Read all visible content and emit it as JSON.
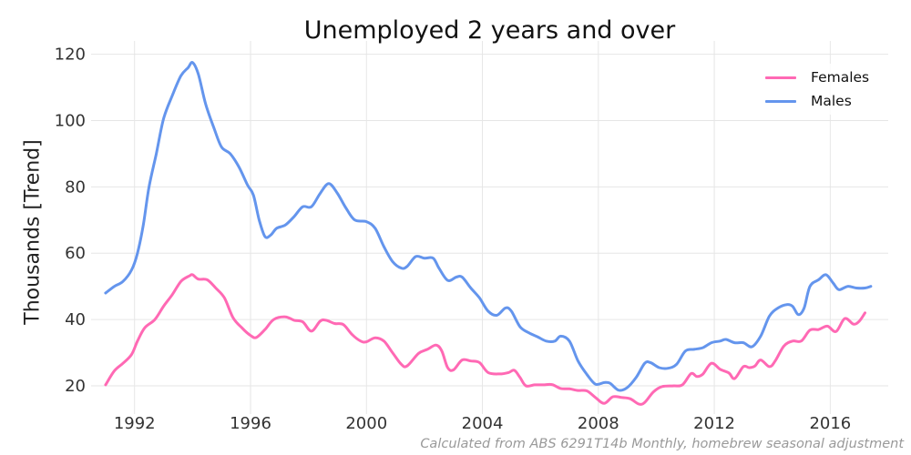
{
  "chart_data": {
    "type": "line",
    "title": "Unemployed 2 years and over",
    "xlabel": "",
    "ylabel": "Thousands [Trend]",
    "footnote": "Calculated from ABS 6291T14b Monthly, homebrew seasonal adjustment",
    "xlim": [
      1990.5,
      2018.0
    ],
    "ylim": [
      11.5,
      124
    ],
    "x_ticks": [
      1992,
      1996,
      2000,
      2004,
      2008,
      2012,
      2016
    ],
    "y_ticks": [
      20,
      40,
      60,
      80,
      100,
      120
    ],
    "grid": true,
    "legend_position": "upper right",
    "series": [
      {
        "name": "Females",
        "color": "#ff69b4",
        "points": [
          [
            1991.0,
            20.3
          ],
          [
            1991.3,
            24.5
          ],
          [
            1991.6,
            26.8
          ],
          [
            1991.9,
            29.5
          ],
          [
            1992.1,
            33.5
          ],
          [
            1992.35,
            37.5
          ],
          [
            1992.7,
            40.0
          ],
          [
            1993.0,
            44.0
          ],
          [
            1993.3,
            47.5
          ],
          [
            1993.6,
            51.5
          ],
          [
            1993.9,
            53.2
          ],
          [
            1994.0,
            53.5
          ],
          [
            1994.2,
            52.2
          ],
          [
            1994.5,
            52.0
          ],
          [
            1994.8,
            49.5
          ],
          [
            1995.1,
            46.5
          ],
          [
            1995.4,
            40.5
          ],
          [
            1995.7,
            37.5
          ],
          [
            1996.0,
            35.2
          ],
          [
            1996.2,
            34.6
          ],
          [
            1996.5,
            37.0
          ],
          [
            1996.8,
            40.0
          ],
          [
            1997.2,
            40.8
          ],
          [
            1997.5,
            39.8
          ],
          [
            1997.8,
            39.3
          ],
          [
            1998.1,
            36.5
          ],
          [
            1998.4,
            39.5
          ],
          [
            1998.6,
            39.8
          ],
          [
            1998.9,
            38.8
          ],
          [
            1999.2,
            38.5
          ],
          [
            1999.5,
            35.5
          ],
          [
            1999.8,
            33.5
          ],
          [
            2000.0,
            33.3
          ],
          [
            2000.3,
            34.5
          ],
          [
            2000.6,
            33.5
          ],
          [
            2000.9,
            30.0
          ],
          [
            2001.2,
            26.5
          ],
          [
            2001.4,
            26.0
          ],
          [
            2001.8,
            29.8
          ],
          [
            2002.1,
            31.0
          ],
          [
            2002.4,
            32.3
          ],
          [
            2002.6,
            30.5
          ],
          [
            2002.8,
            25.5
          ],
          [
            2003.0,
            24.8
          ],
          [
            2003.3,
            27.8
          ],
          [
            2003.6,
            27.5
          ],
          [
            2003.9,
            27.0
          ],
          [
            2004.2,
            24.0
          ],
          [
            2004.6,
            23.6
          ],
          [
            2004.9,
            24.0
          ],
          [
            2005.1,
            24.7
          ],
          [
            2005.3,
            22.5
          ],
          [
            2005.5,
            20.0
          ],
          [
            2005.8,
            20.3
          ],
          [
            2006.1,
            20.3
          ],
          [
            2006.4,
            20.4
          ],
          [
            2006.7,
            19.2
          ],
          [
            2007.0,
            19.1
          ],
          [
            2007.3,
            18.6
          ],
          [
            2007.6,
            18.5
          ],
          [
            2007.9,
            16.5
          ],
          [
            2008.2,
            14.7
          ],
          [
            2008.5,
            16.7
          ],
          [
            2008.8,
            16.5
          ],
          [
            2009.1,
            16.1
          ],
          [
            2009.4,
            14.5
          ],
          [
            2009.6,
            15.0
          ],
          [
            2009.9,
            18.2
          ],
          [
            2010.2,
            19.8
          ],
          [
            2010.6,
            20.0
          ],
          [
            2010.9,
            20.3
          ],
          [
            2011.2,
            23.7
          ],
          [
            2011.4,
            22.8
          ],
          [
            2011.6,
            23.5
          ],
          [
            2011.9,
            26.8
          ],
          [
            2012.2,
            25.0
          ],
          [
            2012.5,
            23.9
          ],
          [
            2012.7,
            22.2
          ],
          [
            2013.0,
            25.8
          ],
          [
            2013.2,
            25.5
          ],
          [
            2013.4,
            26.0
          ],
          [
            2013.6,
            27.8
          ],
          [
            2013.9,
            25.8
          ],
          [
            2014.1,
            27.5
          ],
          [
            2014.4,
            32.0
          ],
          [
            2014.7,
            33.5
          ],
          [
            2015.0,
            33.5
          ],
          [
            2015.3,
            36.8
          ],
          [
            2015.6,
            37.0
          ],
          [
            2015.9,
            38.0
          ],
          [
            2016.2,
            36.4
          ],
          [
            2016.5,
            40.3
          ],
          [
            2016.8,
            38.6
          ],
          [
            2017.0,
            39.5
          ],
          [
            2017.2,
            42.0
          ]
        ]
      },
      {
        "name": "Males",
        "color": "#6495ed",
        "points": [
          [
            1991.0,
            48.0
          ],
          [
            1991.3,
            50.0
          ],
          [
            1991.6,
            51.5
          ],
          [
            1991.9,
            55.0
          ],
          [
            1992.1,
            60.0
          ],
          [
            1992.3,
            68.5
          ],
          [
            1992.5,
            80.0
          ],
          [
            1992.75,
            90.0
          ],
          [
            1993.0,
            100.5
          ],
          [
            1993.3,
            107.5
          ],
          [
            1993.6,
            113.5
          ],
          [
            1993.85,
            116.0
          ],
          [
            1994.0,
            117.5
          ],
          [
            1994.2,
            114.0
          ],
          [
            1994.45,
            105.0
          ],
          [
            1994.75,
            97.5
          ],
          [
            1995.0,
            92.0
          ],
          [
            1995.3,
            90.0
          ],
          [
            1995.6,
            86.0
          ],
          [
            1995.9,
            80.5
          ],
          [
            1996.1,
            77.5
          ],
          [
            1996.3,
            70.0
          ],
          [
            1996.5,
            65.0
          ],
          [
            1996.7,
            65.5
          ],
          [
            1996.9,
            67.5
          ],
          [
            1997.2,
            68.5
          ],
          [
            1997.5,
            71.0
          ],
          [
            1997.8,
            74.0
          ],
          [
            1998.1,
            74.0
          ],
          [
            1998.4,
            78.0
          ],
          [
            1998.7,
            81.0
          ],
          [
            1999.0,
            78.0
          ],
          [
            1999.3,
            73.5
          ],
          [
            1999.6,
            70.0
          ],
          [
            2000.0,
            69.5
          ],
          [
            2000.3,
            67.5
          ],
          [
            2000.6,
            62.0
          ],
          [
            2000.9,
            57.5
          ],
          [
            2001.2,
            55.5
          ],
          [
            2001.4,
            56.0
          ],
          [
            2001.7,
            59.0
          ],
          [
            2002.0,
            58.5
          ],
          [
            2002.3,
            58.5
          ],
          [
            2002.5,
            55.5
          ],
          [
            2002.8,
            51.8
          ],
          [
            2003.1,
            52.8
          ],
          [
            2003.3,
            52.8
          ],
          [
            2003.6,
            49.5
          ],
          [
            2003.9,
            46.5
          ],
          [
            2004.2,
            42.5
          ],
          [
            2004.5,
            41.3
          ],
          [
            2004.8,
            43.5
          ],
          [
            2005.0,
            42.5
          ],
          [
            2005.3,
            37.8
          ],
          [
            2005.6,
            36.0
          ],
          [
            2005.9,
            34.8
          ],
          [
            2006.2,
            33.5
          ],
          [
            2006.5,
            33.5
          ],
          [
            2006.7,
            35.0
          ],
          [
            2007.0,
            33.5
          ],
          [
            2007.3,
            27.5
          ],
          [
            2007.6,
            23.5
          ],
          [
            2007.9,
            20.5
          ],
          [
            2008.2,
            21.0
          ],
          [
            2008.4,
            20.8
          ],
          [
            2008.7,
            18.7
          ],
          [
            2009.0,
            19.5
          ],
          [
            2009.3,
            22.5
          ],
          [
            2009.6,
            26.8
          ],
          [
            2009.8,
            27.0
          ],
          [
            2010.1,
            25.5
          ],
          [
            2010.4,
            25.3
          ],
          [
            2010.7,
            26.5
          ],
          [
            2011.0,
            30.5
          ],
          [
            2011.3,
            31.0
          ],
          [
            2011.6,
            31.5
          ],
          [
            2011.9,
            33.0
          ],
          [
            2012.2,
            33.5
          ],
          [
            2012.4,
            34.0
          ],
          [
            2012.7,
            33.0
          ],
          [
            2013.0,
            33.0
          ],
          [
            2013.3,
            31.8
          ],
          [
            2013.6,
            35.0
          ],
          [
            2013.9,
            41.0
          ],
          [
            2014.2,
            43.5
          ],
          [
            2014.5,
            44.5
          ],
          [
            2014.7,
            44.0
          ],
          [
            2014.9,
            41.5
          ],
          [
            2015.1,
            43.5
          ],
          [
            2015.3,
            50.0
          ],
          [
            2015.6,
            52.0
          ],
          [
            2015.85,
            53.5
          ],
          [
            2016.1,
            51.0
          ],
          [
            2016.3,
            49.0
          ],
          [
            2016.6,
            50.0
          ],
          [
            2016.9,
            49.5
          ],
          [
            2017.2,
            49.5
          ],
          [
            2017.4,
            50.0
          ]
        ]
      }
    ]
  }
}
